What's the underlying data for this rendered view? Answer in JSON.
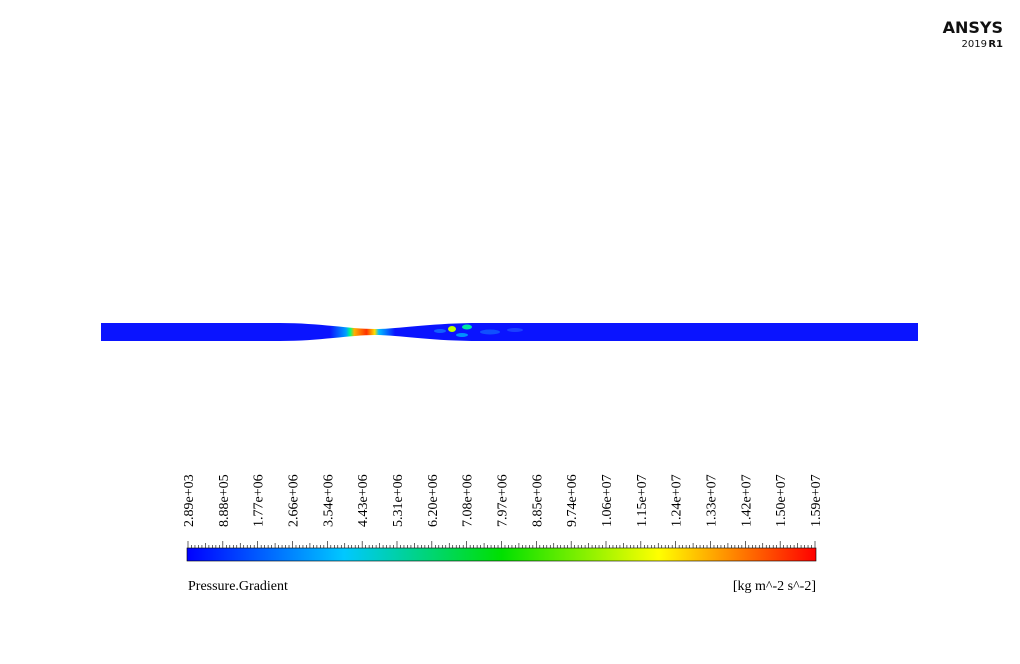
{
  "logo": {
    "name": "ANSYS",
    "version": "2019",
    "release": "R1"
  },
  "colorbar": {
    "title": "Pressure.Gradient",
    "units": "[kg m^-2 s^-2]",
    "ticks": [
      "2.89e+03",
      "8.88e+05",
      "1.77e+06",
      "2.66e+06",
      "3.54e+06",
      "4.43e+06",
      "5.31e+06",
      "6.20e+06",
      "7.08e+06",
      "7.97e+06",
      "8.85e+06",
      "9.74e+06",
      "1.06e+07",
      "1.15e+07",
      "1.24e+07",
      "1.33e+07",
      "1.42e+07",
      "1.50e+07",
      "1.59e+07"
    ]
  }
}
